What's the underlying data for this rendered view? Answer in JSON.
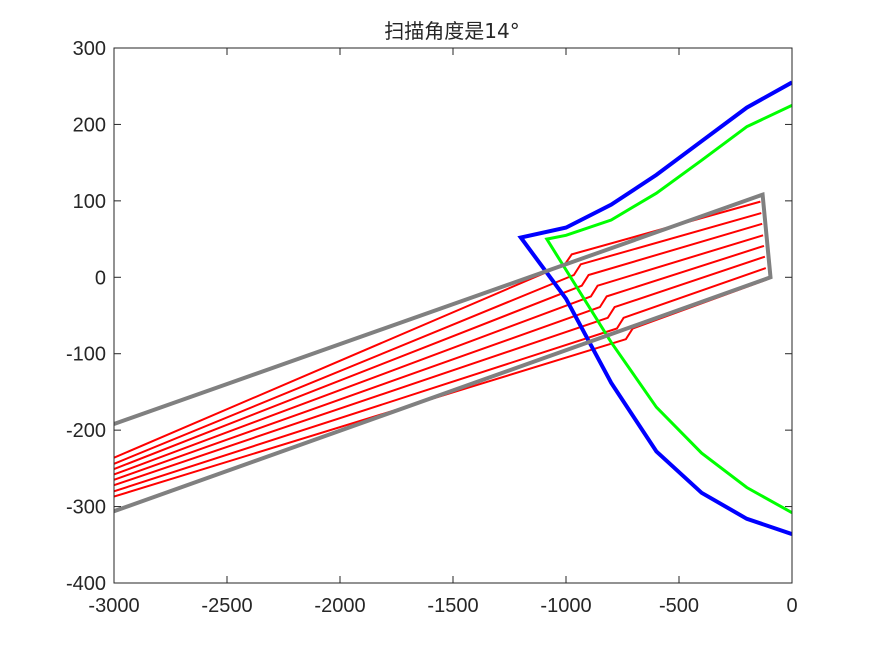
{
  "chart_data": {
    "type": "line",
    "title": "扫描角度是14°",
    "xlabel": "",
    "ylabel": "",
    "xlim": [
      -3000,
      0
    ],
    "ylim": [
      -400,
      300
    ],
    "x_ticks": [
      -3000,
      -2500,
      -2000,
      -1500,
      -1000,
      -500,
      0
    ],
    "y_ticks": [
      -400,
      -300,
      -200,
      -100,
      0,
      100,
      200,
      300
    ],
    "x_tick_labels": [
      "-3000",
      "-2500",
      "-2000",
      "-1500",
      "-1000",
      "-500",
      "0"
    ],
    "y_tick_labels": [
      "-400",
      "-300",
      "-200",
      "-100",
      "0",
      "100",
      "200",
      "300"
    ],
    "grid": false,
    "colors": {
      "blue": "#0000FF",
      "green": "#00FF00",
      "gray": "#808080",
      "red": "#FF0000"
    },
    "series": [
      {
        "color": "#0000FF",
        "points": [
          [
            0,
            255
          ],
          [
            -200,
            222
          ],
          [
            -400,
            178
          ],
          [
            -600,
            134
          ],
          [
            -800,
            95
          ],
          [
            -1000,
            65
          ],
          [
            -1200,
            52
          ],
          [
            -1000,
            -28
          ],
          [
            -800,
            -138
          ],
          [
            -600,
            -228
          ],
          [
            -400,
            -282
          ],
          [
            -200,
            -316
          ],
          [
            0,
            -336
          ]
        ]
      },
      {
        "color": "#00FF00",
        "points": [
          [
            0,
            225
          ],
          [
            -200,
            197
          ],
          [
            -400,
            153
          ],
          [
            -600,
            110
          ],
          [
            -800,
            75
          ],
          [
            -1000,
            55
          ],
          [
            -1085,
            50
          ],
          [
            -800,
            -85
          ],
          [
            -600,
            -170
          ],
          [
            -400,
            -230
          ],
          [
            -200,
            -275
          ],
          [
            0,
            -308
          ]
        ]
      },
      {
        "color": "#808080",
        "points": [
          [
            -3000,
            -192
          ],
          [
            -130,
            108
          ],
          [
            -95,
            0
          ],
          [
            -3000,
            -306
          ]
        ]
      }
    ],
    "rays": [
      {
        "x": [
          -3000,
          -1005,
          -975,
          -140
        ],
        "y": [
          -236,
          17,
          30,
          99
        ]
      },
      {
        "x": [
          -3000,
          -965,
          -935,
          -136
        ],
        "y": [
          -244,
          3,
          17,
          84
        ]
      },
      {
        "x": [
          -3000,
          -930,
          -900,
          -132
        ],
        "y": [
          -251,
          -11,
          3,
          70
        ]
      },
      {
        "x": [
          -3000,
          -890,
          -860,
          -128
        ],
        "y": [
          -258,
          -25,
          -11,
          55
        ]
      },
      {
        "x": [
          -3000,
          -850,
          -820,
          -124
        ],
        "y": [
          -265,
          -39,
          -25,
          41
        ]
      },
      {
        "x": [
          -3000,
          -815,
          -785,
          -120
        ],
        "y": [
          -272,
          -53,
          -39,
          27
        ]
      },
      {
        "x": [
          -3000,
          -775,
          -745,
          -116
        ],
        "y": [
          -280,
          -67,
          -53,
          12
        ]
      },
      {
        "x": [
          -3000,
          -735,
          -705,
          -112
        ],
        "y": [
          -287,
          -81,
          -67,
          -3
        ]
      }
    ]
  }
}
